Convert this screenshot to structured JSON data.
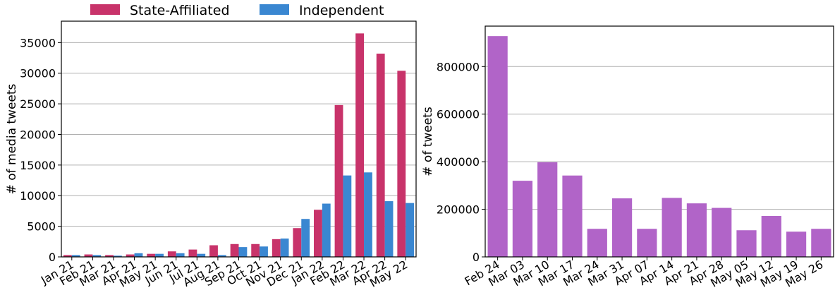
{
  "chart_data": [
    {
      "type": "bar",
      "title": "",
      "xlabel": "",
      "ylabel": "# of media tweets",
      "ylim": [
        0,
        38500
      ],
      "yticks": [
        0,
        5000,
        10000,
        15000,
        20000,
        25000,
        30000,
        35000
      ],
      "grid": "horizontal",
      "legend_position": "top",
      "categories": [
        "Jan 21",
        "Feb 21",
        "Mar 21",
        "Apr 21",
        "May 21",
        "Jun 21",
        "Jul 21",
        "Aug 21",
        "Sep 21",
        "Oct 21",
        "Nov 21",
        "Dec 21",
        "Jan 22",
        "Feb 22",
        "Mar 22",
        "Apr 22",
        "May 22"
      ],
      "series": [
        {
          "name": "State-Affiliated",
          "color": "#c8336a",
          "values": [
            300,
            400,
            300,
            400,
            500,
            900,
            1200,
            1900,
            2100,
            2100,
            2900,
            4700,
            7700,
            24800,
            36500,
            33200,
            30400
          ]
        },
        {
          "name": "Independent",
          "color": "#3a87d1",
          "values": [
            300,
            300,
            200,
            600,
            500,
            600,
            500,
            300,
            1600,
            1700,
            3000,
            6200,
            8700,
            13300,
            13800,
            9100,
            8800
          ]
        }
      ]
    },
    {
      "type": "bar",
      "title": "",
      "xlabel": "",
      "ylabel": "# of tweets",
      "ylim": [
        0,
        970000
      ],
      "yticks": [
        0,
        200000,
        400000,
        600000,
        800000
      ],
      "grid": "horizontal",
      "categories": [
        "Feb 24",
        "Mar 03",
        "Mar 10",
        "Mar 17",
        "Mar 24",
        "Mar 31",
        "Apr 07",
        "Apr 14",
        "Apr 21",
        "Apr 28",
        "May 05",
        "May 12",
        "May 19",
        "May 26"
      ],
      "series": [
        {
          "color": "#b164c8",
          "values": [
            928000,
            320000,
            398000,
            342000,
            118000,
            246000,
            118000,
            248000,
            225000,
            206000,
            112000,
            172000,
            106000,
            118000
          ]
        }
      ]
    }
  ]
}
